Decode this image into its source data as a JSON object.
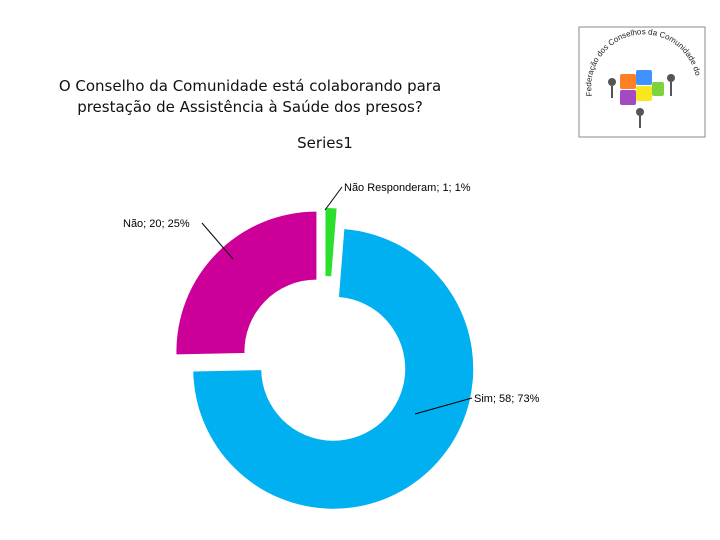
{
  "title_line1": "O Conselho da Comunidade está colaborando para",
  "title_line2": "prestação de Assistência à Saúde dos presos?",
  "logo": {
    "arc_text": "Federação dos Conselhos da Comunidade do Paraná"
  },
  "chart_data": {
    "type": "pie",
    "subtype": "exploded-doughnut",
    "title": "Series1",
    "series": [
      {
        "name": "Series1",
        "slices": [
          {
            "label": "Não Responderam",
            "value": 1,
            "percent": "1%",
            "color": "#2ddf2d"
          },
          {
            "label": "Sim",
            "value": 58,
            "percent": "73%",
            "color": "#00b0f0"
          },
          {
            "label": "Não",
            "value": 20,
            "percent": "25%",
            "color": "#cc0099"
          }
        ]
      }
    ],
    "data_labels": [
      "Não Responderam; 1; 1%",
      "Sim; 58; 73%",
      "Não; 20; 25%"
    ],
    "legend": "none"
  }
}
